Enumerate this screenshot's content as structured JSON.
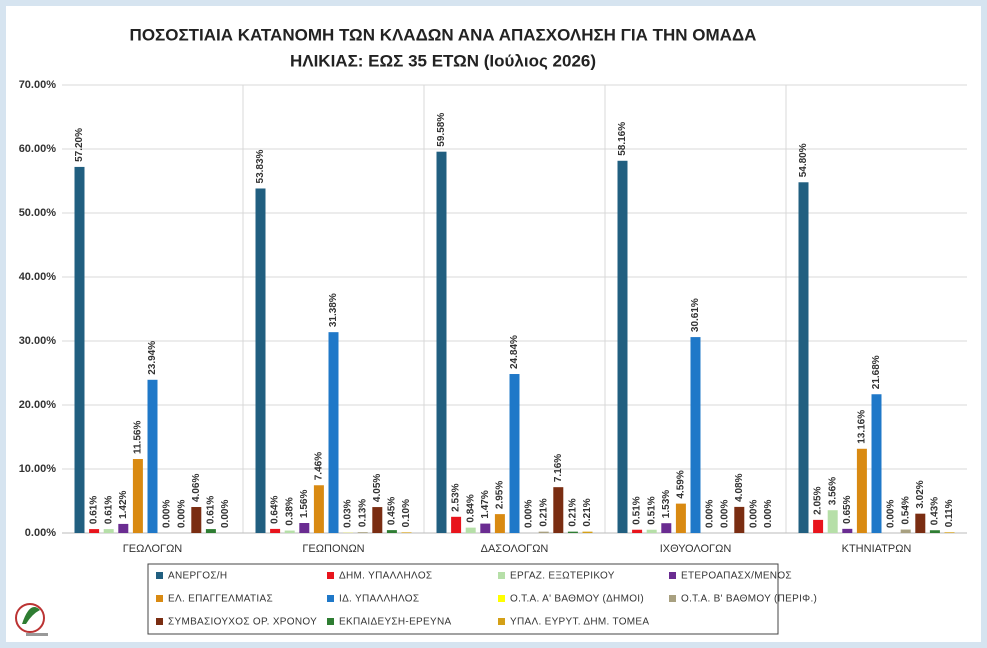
{
  "chart_data": {
    "type": "bar",
    "title": "ΠΟΣΟΣΤΙΑΙΑ ΚΑΤΑΝΟΜΗ ΤΩΝ ΚΛΑΔΩΝ ΑΝΑ ΑΠΑΣΧΟΛΗΣΗ ΓΙΑ ΤΗΝ ΟΜΑΔΑ",
    "subtitle": "ΗΛΙΚΙΑΣ: ΕΩΣ 35 ΕΤΩΝ (Ιούλιος 2026)",
    "categories": [
      "ΓΕΩΛΟΓΩΝ",
      "ΓΕΩΠΟΝΩΝ",
      "ΔΑΣΟΛΟΓΩΝ",
      "ΙΧΘΥΟΛΟΓΩΝ",
      "ΚΤΗΝΙΑΤΡΩΝ"
    ],
    "ylim": [
      0,
      70
    ],
    "yticks": [
      {
        "value": 0,
        "label": "0.00%"
      },
      {
        "value": 10,
        "label": "10.00%"
      },
      {
        "value": 20,
        "label": "20.00%"
      },
      {
        "value": 30,
        "label": "30.00%"
      },
      {
        "value": 40,
        "label": "40.00%"
      },
      {
        "value": 50,
        "label": "50.00%"
      },
      {
        "value": 60,
        "label": "60.00%"
      },
      {
        "value": 70,
        "label": "70.00%"
      }
    ],
    "grid": true,
    "legend": "bottom",
    "series": [
      {
        "name": "ΑΝΕΡΓΟΣ/Η",
        "color": "#215f80",
        "values": [
          57.2,
          53.83,
          59.58,
          58.16,
          54.8
        ],
        "value_labels": [
          "57.20%",
          "53.83%",
          "59.58%",
          "58.16%",
          "54.80%"
        ]
      },
      {
        "name": "ΔΗΜ. ΥΠΑΛΛΗΛΟΣ",
        "color": "#e8141c",
        "values": [
          0.61,
          0.64,
          2.53,
          0.51,
          2.05
        ],
        "value_labels": [
          "0.61%",
          "0.64%",
          "2.53%",
          "0.51%",
          "2.05%"
        ]
      },
      {
        "name": "ΕΡΓΑΖ. ΕΞΩΤΕΡΙΚΟΥ",
        "color": "#b6dfa8",
        "values": [
          0.61,
          0.38,
          0.84,
          0.51,
          3.56
        ],
        "value_labels": [
          "0.61%",
          "0.38%",
          "0.84%",
          "0.51%",
          "3.56%"
        ]
      },
      {
        "name": "ΕΤΕΡΟΑΠΑΣΧ/ΜΕΝΟΣ",
        "color": "#6a2c91",
        "values": [
          1.42,
          1.56,
          1.47,
          1.53,
          0.65
        ],
        "value_labels": [
          "1.42%",
          "1.56%",
          "1.47%",
          "1.53%",
          "0.65%"
        ]
      },
      {
        "name": "ΕΛ. ΕΠΑΓΓΕΛΜΑΤΙΑΣ",
        "color": "#d98a12",
        "values": [
          11.56,
          7.46,
          2.95,
          4.59,
          13.16
        ],
        "value_labels": [
          "11.56%",
          "7.46%",
          "2.95%",
          "4.59%",
          "13.16%"
        ]
      },
      {
        "name": "ΙΔ. ΥΠΑΛΛΗΛΟΣ",
        "color": "#1f78c8",
        "values": [
          23.94,
          31.38,
          24.84,
          30.61,
          21.68
        ],
        "value_labels": [
          "23.94%",
          "31.38%",
          "24.84%",
          "30.61%",
          "21.68%"
        ]
      },
      {
        "name": "Ο.Τ.Α. Α' ΒΑΘΜΟΥ (ΔΗΜΟΙ)",
        "color": "#ffff00",
        "values": [
          0,
          0.03,
          0,
          0,
          0
        ],
        "value_labels": [
          "0.00%",
          "0.03%",
          "0.00%",
          "0.00%",
          "0.00%"
        ]
      },
      {
        "name": "Ο.Τ.Α. Β' ΒΑΘΜΟΥ (ΠΕΡΙΦ.)",
        "color": "#a8a080",
        "values": [
          0,
          0.13,
          0.21,
          0,
          0.54
        ],
        "value_labels": [
          "0.00%",
          "0.13%",
          "0.21%",
          "0.00%",
          "0.54%"
        ]
      },
      {
        "name": "ΣΥΜΒΑΣΙΟΥΧΟΣ ΟΡ. ΧΡΟΝΟΥ",
        "color": "#7a2d12",
        "values": [
          4.06,
          4.05,
          7.16,
          4.08,
          3.02
        ],
        "value_labels": [
          "4.06%",
          "4.05%",
          "7.16%",
          "4.08%",
          "3.02%"
        ]
      },
      {
        "name": "ΕΚΠΑΙΔΕΥΣΗ-ΕΡΕΥΝΑ",
        "color": "#2e7d32",
        "values": [
          0.61,
          0.45,
          0.21,
          0,
          0.43
        ],
        "value_labels": [
          "0.61%",
          "0.45%",
          "0.21%",
          "0.00%",
          "0.43%"
        ]
      },
      {
        "name": "ΥΠΑΛ. ΕΥΡΥΤ. ΔΗΜ. ΤΟΜΕΑ",
        "color": "#d4a017",
        "values": [
          0,
          0.1,
          0.21,
          0,
          0.11
        ],
        "value_labels": [
          "0.00%",
          "0.10%",
          "0.21%",
          "0.00%",
          "0.11%"
        ]
      }
    ]
  }
}
